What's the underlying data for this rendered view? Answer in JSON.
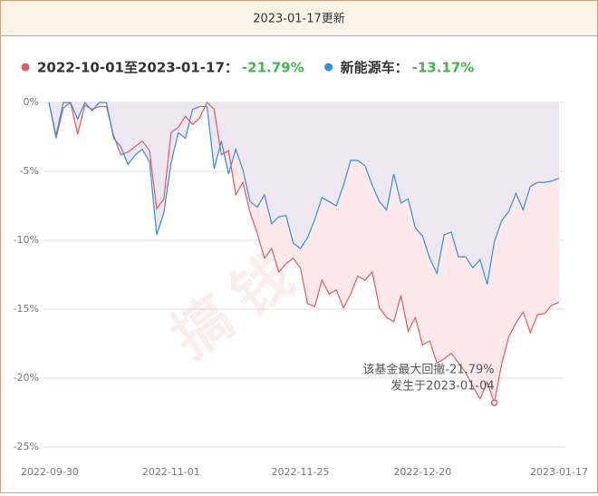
{
  "header": "2023-01-17更新",
  "chart_data": {
    "type": "line",
    "watermark": "搞钱基地",
    "categories": [
      "2022-09-30",
      null,
      null,
      null,
      null,
      null,
      null,
      null,
      null,
      null,
      null,
      null,
      null,
      null,
      null,
      null,
      null,
      "2022-11-01",
      null,
      null,
      null,
      null,
      null,
      null,
      null,
      null,
      null,
      null,
      null,
      null,
      null,
      null,
      null,
      null,
      null,
      "2022-11-25",
      null,
      null,
      null,
      null,
      null,
      null,
      null,
      null,
      null,
      null,
      null,
      null,
      null,
      null,
      null,
      null,
      "2022-12-20",
      null,
      null,
      null,
      null,
      null,
      null,
      null,
      null,
      null,
      null,
      null,
      null,
      null,
      null,
      null,
      null,
      null,
      null,
      "2023-01-17"
    ],
    "series": [
      {
        "name": "2022-10-01至2023-01-17：",
        "change_label": "-21.79%",
        "color": "#e8595a",
        "fill": "#fde9e9",
        "values": [
          0,
          -2.6,
          -0.4,
          0,
          -2.3,
          -0.2,
          -0.5,
          -0.3,
          -0.3,
          -2.4,
          -3.8,
          -3.6,
          -3.2,
          -2.8,
          -3.5,
          -7.7,
          -7.0,
          -2.2,
          -1.8,
          -1.0,
          -1.6,
          -1.1,
          0,
          -0.5,
          -3.8,
          -3.5,
          -6.7,
          -5.8,
          -8.0,
          -9.5,
          -11.3,
          -10.6,
          -12.3,
          -11.7,
          -11.3,
          -12.0,
          -14.6,
          -14.8,
          -12.9,
          -13.9,
          -13.6,
          -14.9,
          -13.9,
          -12.6,
          -12.9,
          -12.3,
          -14.9,
          -15.6,
          -15.9,
          -14.0,
          -16.6,
          -15.6,
          -17.6,
          -17.3,
          -18.9,
          -18.6,
          -18.2,
          -18.9,
          -19.6,
          -20.6,
          -21.5,
          -20.3,
          -21.79,
          -19.0,
          -17.0,
          -16.0,
          -15.2,
          -16.7,
          -15.4,
          -15.3,
          -14.7,
          -14.5
        ]
      },
      {
        "name": "新能源车：",
        "change_label": "-13.17%",
        "color": "#2f8fe6",
        "fill": "#ede7f0",
        "values": [
          0,
          -2.4,
          0,
          0,
          -1.2,
          0,
          -0.6,
          0,
          0,
          -2.6,
          -3.2,
          -4.5,
          -3.8,
          -3.4,
          -4.3,
          -9.6,
          -8.0,
          -4.4,
          -2.2,
          -2.6,
          -0.5,
          -0.3,
          -0.3,
          -4.8,
          -2.8,
          -5.2,
          -3.4,
          -4.9,
          -7.2,
          -7.6,
          -6.7,
          -8.8,
          -8.3,
          -8.2,
          -10.2,
          -10.6,
          -9.8,
          -8.5,
          -6.9,
          -7.2,
          -7.5,
          -6.0,
          -4.2,
          -4.2,
          -4.6,
          -6.0,
          -7.2,
          -7.8,
          -5.2,
          -7.3,
          -7.0,
          -9.1,
          -9.7,
          -11.3,
          -12.4,
          -9.6,
          -9.4,
          -11.2,
          -11.2,
          -12.0,
          -11.4,
          -13.2,
          -10.1,
          -8.6,
          -7.9,
          -6.6,
          -7.8,
          -6.1,
          -5.8,
          -5.8,
          -5.7,
          -5.5
        ]
      }
    ],
    "change_color": "#3cb94a",
    "annotation": {
      "index": 62,
      "lines": [
        "该基金最大回撤-21.79%",
        "发生于2023-01-04"
      ]
    },
    "ylim": [
      -25,
      0
    ],
    "yticks": [
      {
        "value": 0,
        "label": "0%"
      },
      {
        "value": -5,
        "label": "-5%"
      },
      {
        "value": -10,
        "label": "-10%"
      },
      {
        "value": -15,
        "label": "-15%"
      },
      {
        "value": -20,
        "label": "-20%"
      },
      {
        "value": -25,
        "label": "-25%"
      }
    ],
    "grid": true
  }
}
